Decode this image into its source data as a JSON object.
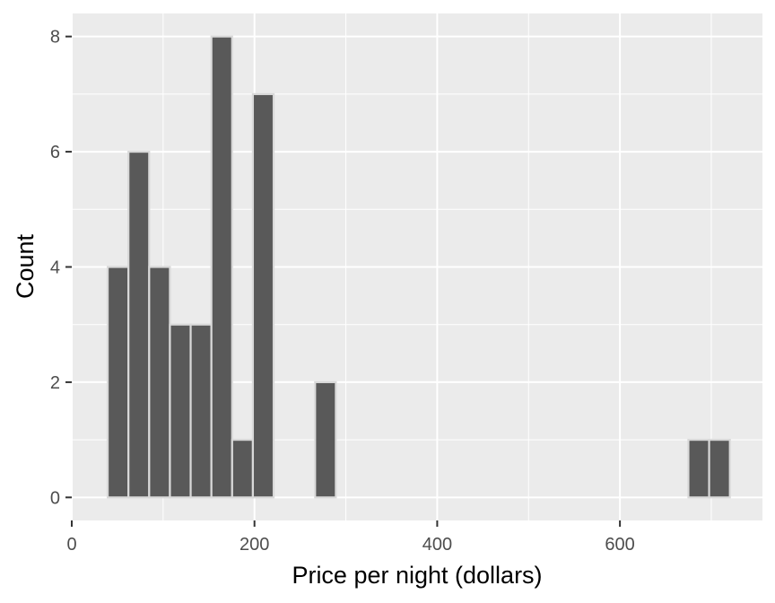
{
  "chart_data": {
    "type": "bar",
    "xlabel": "Price per night (dollars)",
    "ylabel": "Count",
    "xlim": [
      0,
      756
    ],
    "ylim": [
      -0.4,
      8.4
    ],
    "x_ticks": [
      0,
      200,
      400,
      600
    ],
    "y_ticks": [
      0,
      2,
      4,
      6,
      8
    ],
    "binwidth": 22.7,
    "bins": [
      {
        "x": 50.7,
        "count": 4
      },
      {
        "x": 73.4,
        "count": 6
      },
      {
        "x": 96.1,
        "count": 4
      },
      {
        "x": 118.8,
        "count": 3
      },
      {
        "x": 141.5,
        "count": 3
      },
      {
        "x": 164.2,
        "count": 8
      },
      {
        "x": 186.9,
        "count": 1
      },
      {
        "x": 209.6,
        "count": 7
      },
      {
        "x": 232.3,
        "count": 0
      },
      {
        "x": 255.0,
        "count": 0
      },
      {
        "x": 277.7,
        "count": 2
      },
      {
        "x": 300.4,
        "count": 0
      },
      {
        "x": 323.1,
        "count": 0
      },
      {
        "x": 345.8,
        "count": 0
      },
      {
        "x": 368.5,
        "count": 0
      },
      {
        "x": 391.2,
        "count": 0
      },
      {
        "x": 413.9,
        "count": 0
      },
      {
        "x": 436.6,
        "count": 0
      },
      {
        "x": 459.3,
        "count": 0
      },
      {
        "x": 482.0,
        "count": 0
      },
      {
        "x": 504.7,
        "count": 0
      },
      {
        "x": 527.4,
        "count": 0
      },
      {
        "x": 550.1,
        "count": 0
      },
      {
        "x": 572.8,
        "count": 0
      },
      {
        "x": 595.5,
        "count": 0
      },
      {
        "x": 618.2,
        "count": 0
      },
      {
        "x": 640.9,
        "count": 0
      },
      {
        "x": 663.6,
        "count": 0
      },
      {
        "x": 686.3,
        "count": 1
      },
      {
        "x": 709.0,
        "count": 1
      }
    ],
    "grid": true,
    "colors": {
      "panel": "#ebebeb",
      "grid_major": "#ffffff",
      "bar_fill": "#595959",
      "bar_outline": "#d9d9d9",
      "tick_text": "#4d4d4d",
      "axis_title": "#000000"
    }
  }
}
